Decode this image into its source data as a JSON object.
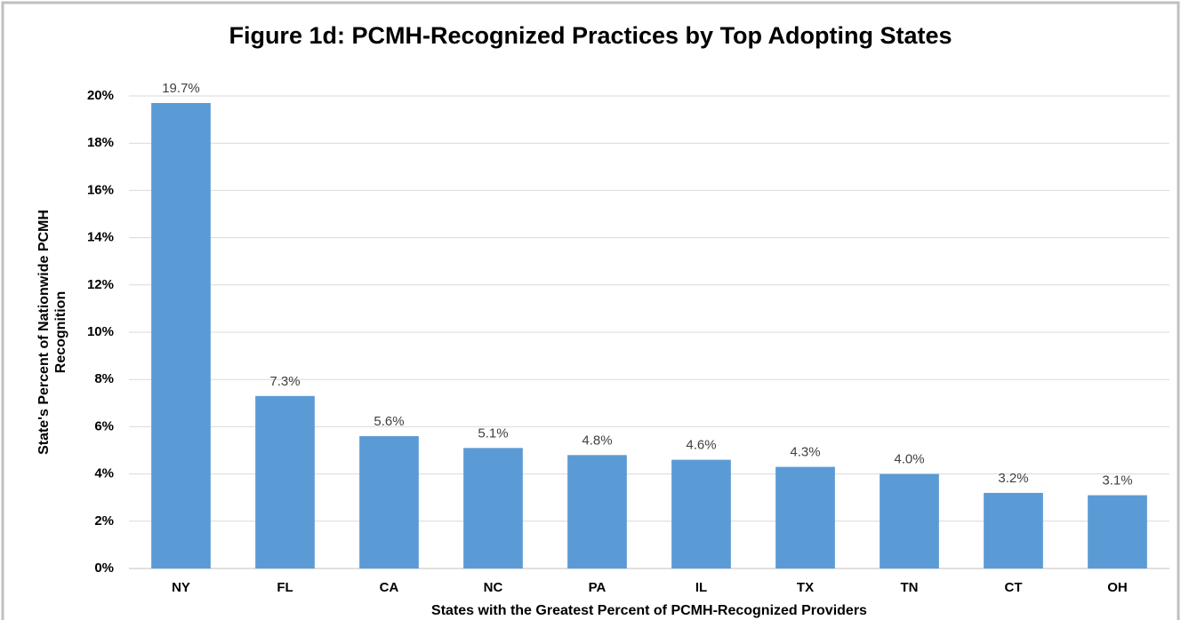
{
  "chart_data": {
    "type": "bar",
    "title": "Figure 1d: PCMH-Recognized Practices by Top Adopting States",
    "xlabel": "States with the Greatest Percent of PCMH-Recognized Providers",
    "ylabel": [
      "State's Percent of Nationwide PCMH",
      "Recognition"
    ],
    "categories": [
      "NY",
      "FL",
      "CA",
      "NC",
      "PA",
      "IL",
      "TX",
      "TN",
      "CT",
      "OH"
    ],
    "values": [
      19.7,
      7.3,
      5.6,
      5.1,
      4.8,
      4.6,
      4.3,
      4.0,
      3.2,
      3.1
    ],
    "value_labels": [
      "19.7%",
      "7.3%",
      "5.6%",
      "5.1%",
      "4.8%",
      "4.6%",
      "4.3%",
      "4.0%",
      "3.2%",
      "3.1%"
    ],
    "color": "#5b9bd5",
    "ylim": [
      0,
      20
    ],
    "yticks": [
      {
        "value": 0,
        "label": "0%"
      },
      {
        "value": 2,
        "label": "2%"
      },
      {
        "value": 4,
        "label": "4%"
      },
      {
        "value": 6,
        "label": "6%"
      },
      {
        "value": 8,
        "label": "8%"
      },
      {
        "value": 10,
        "label": "10%"
      },
      {
        "value": 12,
        "label": "12%"
      },
      {
        "value": 14,
        "label": "14%"
      },
      {
        "value": 16,
        "label": "16%"
      },
      {
        "value": 18,
        "label": "18%"
      },
      {
        "value": 20,
        "label": "20%"
      }
    ],
    "grid": true
  }
}
